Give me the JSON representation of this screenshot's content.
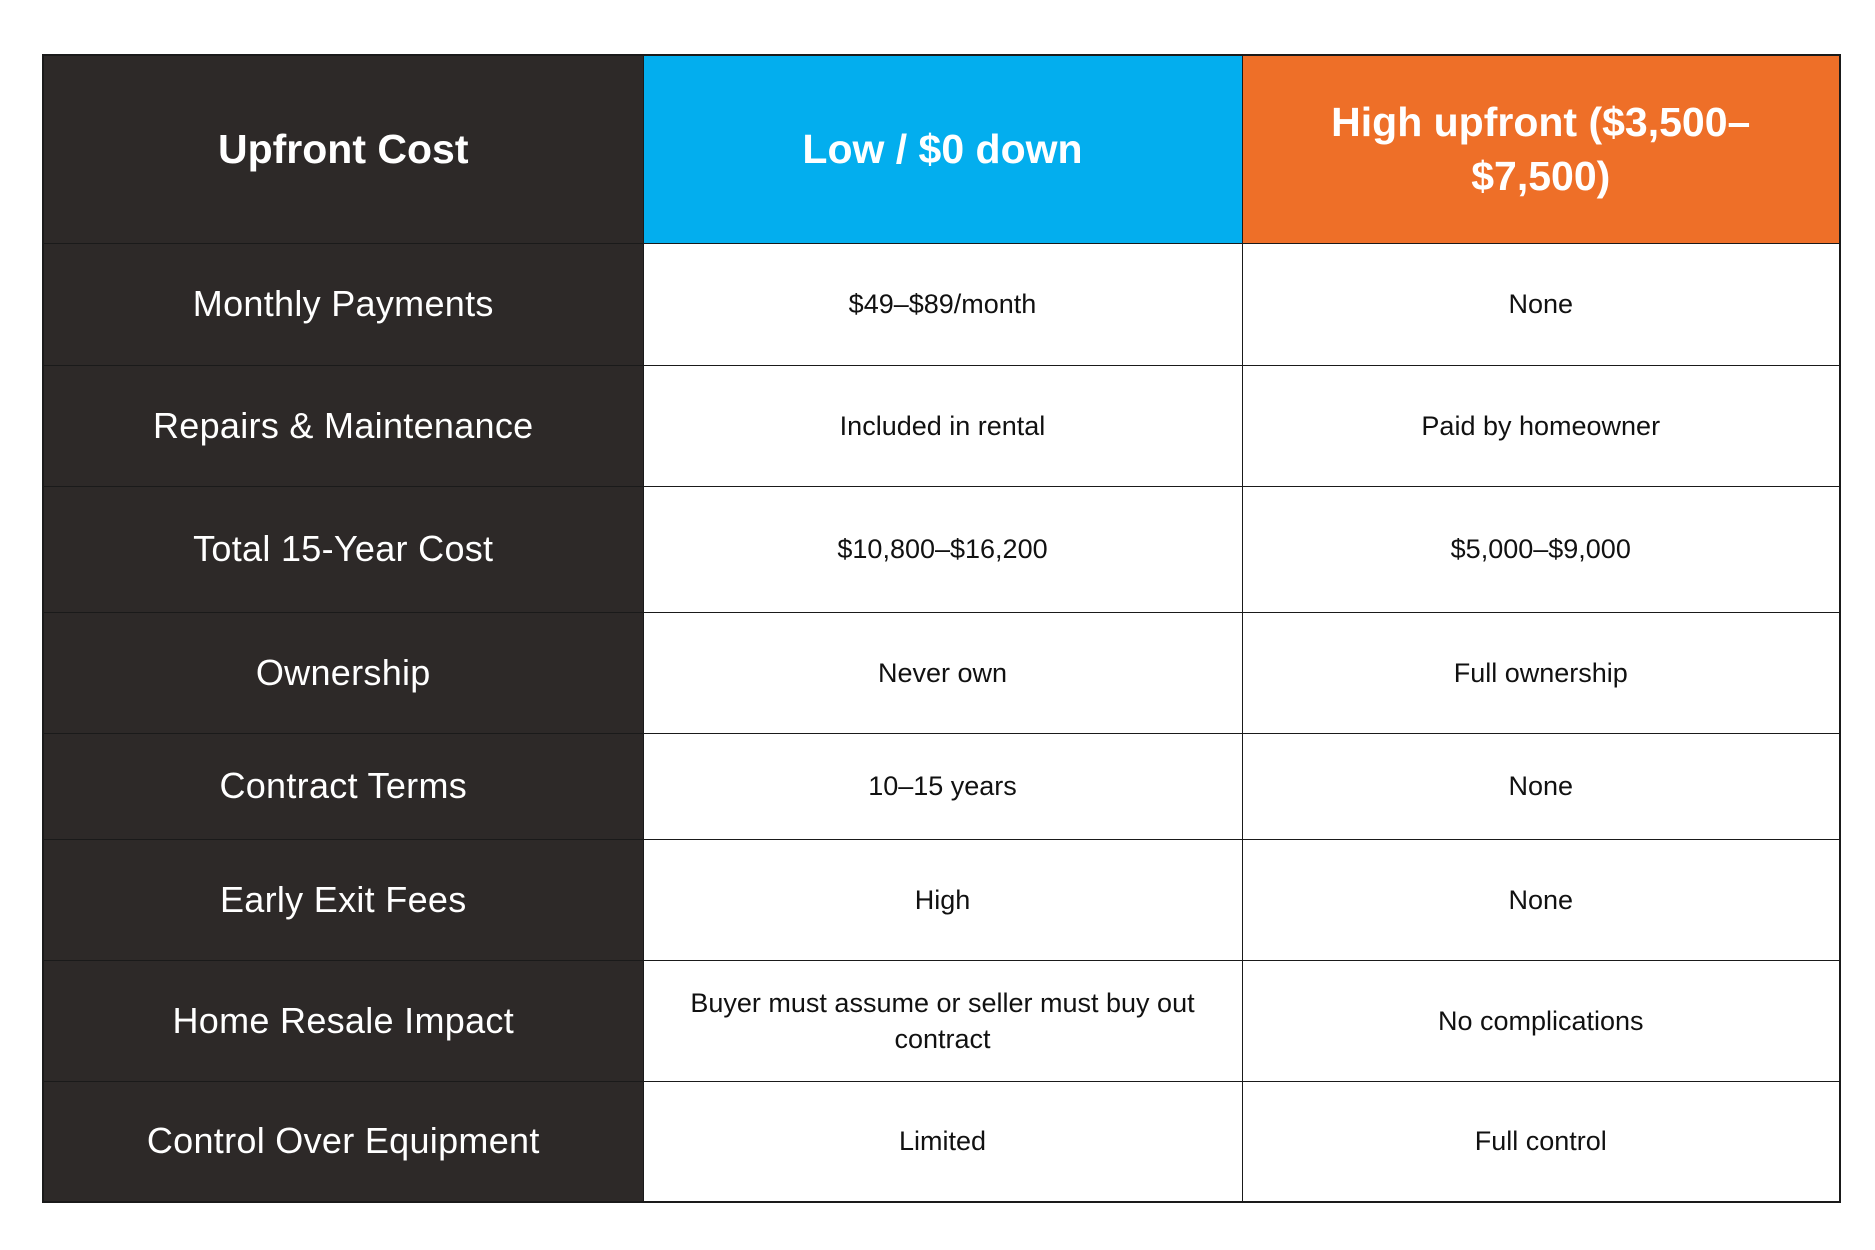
{
  "header": {
    "label": "Upfront Cost",
    "option_a": "Low / $0 down",
    "option_b": "High upfront ($3,500–$7,500)"
  },
  "colors": {
    "label_bg": "#2d2928",
    "option_a_bg": "#03aeee",
    "option_b_bg": "#ee6f28"
  },
  "rows": [
    {
      "label": "Monthly Payments",
      "a": "$49–$89/month",
      "b": "None"
    },
    {
      "label": "Repairs & Maintenance",
      "a": "Included in rental",
      "b": "Paid by homeowner"
    },
    {
      "label": "Total 15-Year Cost",
      "a": "$10,800–$16,200",
      "b": "$5,000–$9,000"
    },
    {
      "label": "Ownership",
      "a": "Never own",
      "b": "Full ownership"
    },
    {
      "label": "Contract Terms",
      "a": "10–15 years",
      "b": "None"
    },
    {
      "label": "Early Exit Fees",
      "a": "High",
      "b": "None"
    },
    {
      "label": "Home Resale Impact",
      "a": "Buyer must assume or seller must buy out contract",
      "b": "No complications"
    },
    {
      "label": "Control Over Equipment",
      "a": "Limited",
      "b": "Full control"
    }
  ]
}
